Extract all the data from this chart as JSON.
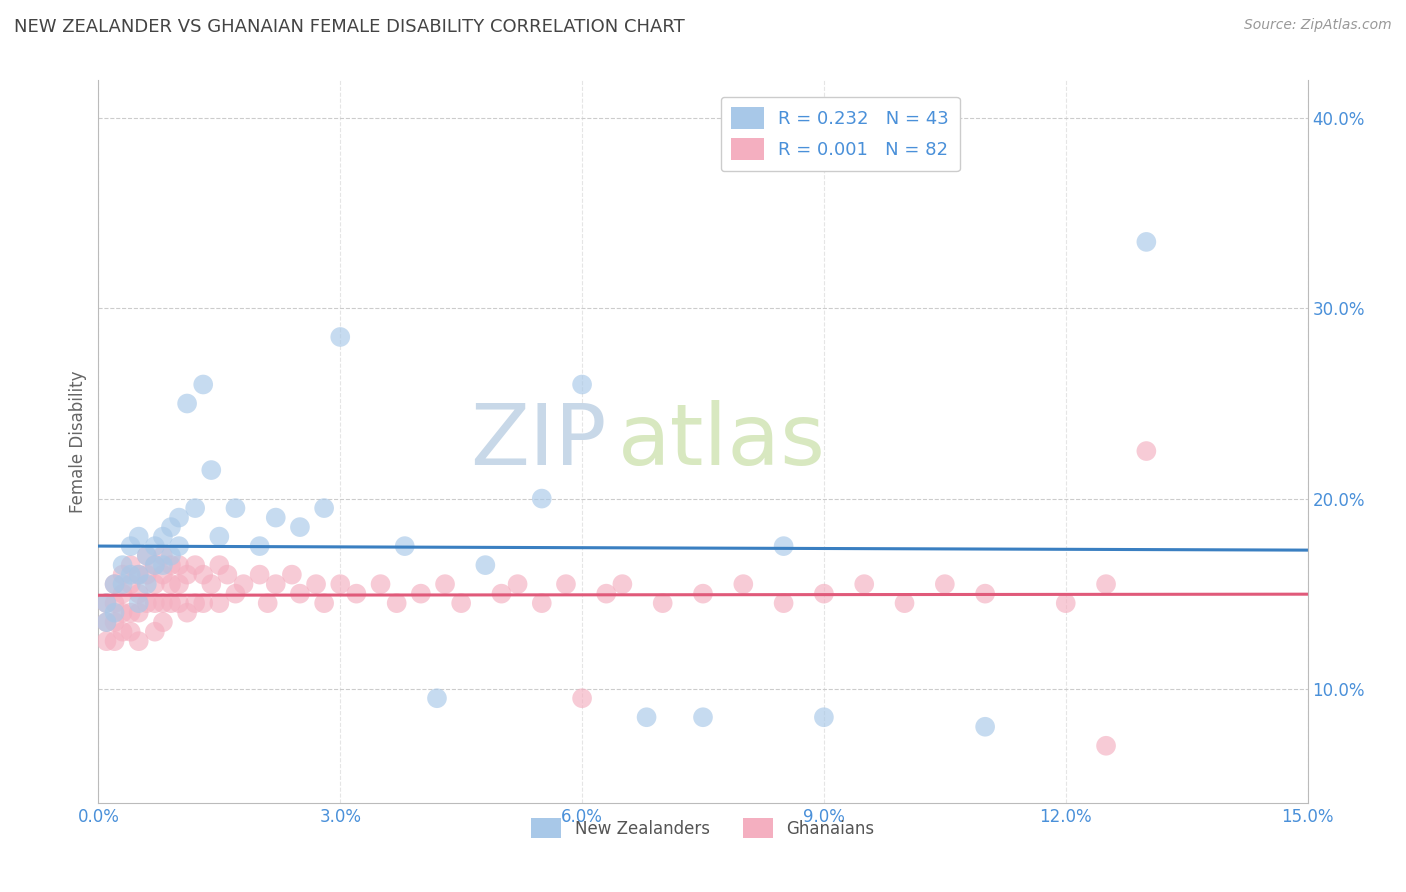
{
  "title": "NEW ZEALANDER VS GHANAIAN FEMALE DISABILITY CORRELATION CHART",
  "source_text": "Source: ZipAtlas.com",
  "ylabel": "Female Disability",
  "xlim": [
    0.0,
    0.15
  ],
  "ylim": [
    0.04,
    0.42
  ],
  "x_ticks": [
    0.0,
    0.03,
    0.06,
    0.09,
    0.12,
    0.15
  ],
  "x_tick_labels": [
    "0.0%",
    "3.0%",
    "6.0%",
    "9.0%",
    "12.0%",
    "15.0%"
  ],
  "y_ticks_right": [
    0.1,
    0.2,
    0.3,
    0.4
  ],
  "y_tick_labels_right": [
    "10.0%",
    "20.0%",
    "30.0%",
    "40.0%"
  ],
  "nz_color": "#a8c8e8",
  "gh_color": "#f4afc0",
  "nz_R": "0.232",
  "nz_N": "43",
  "gh_R": "0.001",
  "gh_N": "82",
  "legend_label_nz": "New Zealanders",
  "legend_label_gh": "Ghanaians",
  "nz_x": [
    0.001,
    0.001,
    0.002,
    0.002,
    0.003,
    0.003,
    0.004,
    0.004,
    0.005,
    0.005,
    0.005,
    0.006,
    0.006,
    0.007,
    0.007,
    0.008,
    0.008,
    0.009,
    0.009,
    0.01,
    0.01,
    0.011,
    0.012,
    0.013,
    0.014,
    0.015,
    0.017,
    0.02,
    0.022,
    0.025,
    0.028,
    0.03,
    0.038,
    0.042,
    0.048,
    0.055,
    0.06,
    0.068,
    0.075,
    0.085,
    0.09,
    0.11,
    0.13
  ],
  "nz_y": [
    0.145,
    0.135,
    0.155,
    0.14,
    0.165,
    0.155,
    0.175,
    0.16,
    0.18,
    0.16,
    0.145,
    0.17,
    0.155,
    0.175,
    0.165,
    0.18,
    0.165,
    0.185,
    0.17,
    0.19,
    0.175,
    0.25,
    0.195,
    0.26,
    0.215,
    0.18,
    0.195,
    0.175,
    0.19,
    0.185,
    0.195,
    0.285,
    0.175,
    0.095,
    0.165,
    0.2,
    0.26,
    0.085,
    0.085,
    0.175,
    0.085,
    0.08,
    0.335
  ],
  "gh_x": [
    0.001,
    0.001,
    0.001,
    0.002,
    0.002,
    0.002,
    0.002,
    0.003,
    0.003,
    0.003,
    0.003,
    0.004,
    0.004,
    0.004,
    0.004,
    0.005,
    0.005,
    0.005,
    0.005,
    0.006,
    0.006,
    0.006,
    0.007,
    0.007,
    0.007,
    0.007,
    0.008,
    0.008,
    0.008,
    0.008,
    0.009,
    0.009,
    0.009,
    0.01,
    0.01,
    0.01,
    0.011,
    0.011,
    0.012,
    0.012,
    0.013,
    0.013,
    0.014,
    0.015,
    0.015,
    0.016,
    0.017,
    0.018,
    0.02,
    0.021,
    0.022,
    0.024,
    0.025,
    0.027,
    0.028,
    0.03,
    0.032,
    0.035,
    0.037,
    0.04,
    0.043,
    0.045,
    0.05,
    0.052,
    0.055,
    0.058,
    0.06,
    0.063,
    0.065,
    0.07,
    0.075,
    0.08,
    0.085,
    0.09,
    0.095,
    0.1,
    0.105,
    0.11,
    0.12,
    0.125,
    0.13,
    0.125
  ],
  "gh_y": [
    0.135,
    0.145,
    0.125,
    0.155,
    0.135,
    0.145,
    0.125,
    0.15,
    0.14,
    0.16,
    0.13,
    0.155,
    0.14,
    0.165,
    0.13,
    0.16,
    0.14,
    0.15,
    0.125,
    0.16,
    0.145,
    0.17,
    0.155,
    0.13,
    0.165,
    0.145,
    0.16,
    0.145,
    0.17,
    0.135,
    0.165,
    0.145,
    0.155,
    0.165,
    0.145,
    0.155,
    0.16,
    0.14,
    0.165,
    0.145,
    0.16,
    0.145,
    0.155,
    0.165,
    0.145,
    0.16,
    0.15,
    0.155,
    0.16,
    0.145,
    0.155,
    0.16,
    0.15,
    0.155,
    0.145,
    0.155,
    0.15,
    0.155,
    0.145,
    0.15,
    0.155,
    0.145,
    0.15,
    0.155,
    0.145,
    0.155,
    0.095,
    0.15,
    0.155,
    0.145,
    0.15,
    0.155,
    0.145,
    0.15,
    0.155,
    0.145,
    0.155,
    0.15,
    0.145,
    0.155,
    0.225,
    0.07
  ],
  "background_color": "#ffffff",
  "grid_color": "#cccccc",
  "title_color": "#444444",
  "axis_label_color": "#666666",
  "tick_label_color": "#4a90d9",
  "watermark_zip": "ZIP",
  "watermark_atlas": "atlas",
  "watermark_color": "#dce8f0",
  "regression_nz_color": "#3a7fc1",
  "regression_gh_color": "#e05a7a"
}
